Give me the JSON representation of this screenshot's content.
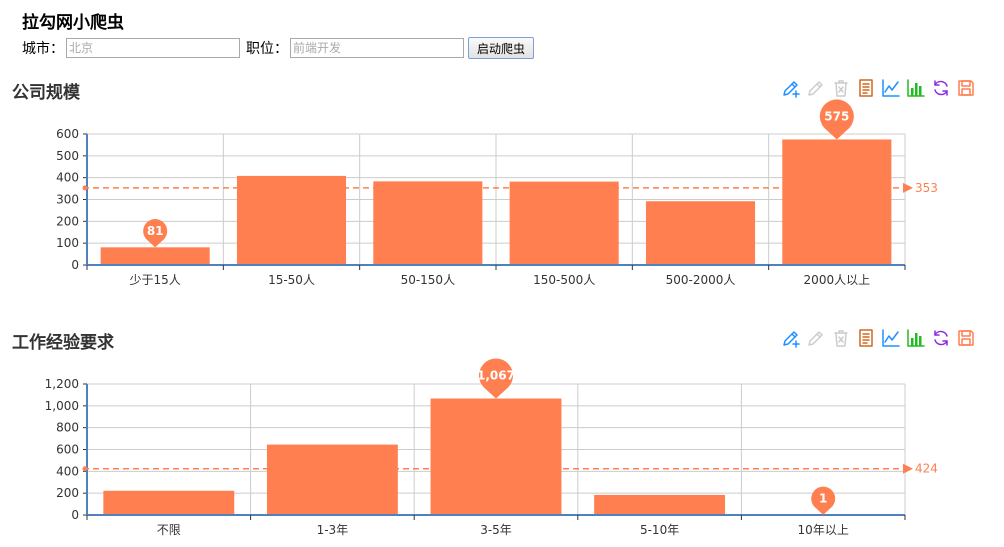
{
  "app": {
    "title": "拉勾网小爬虫"
  },
  "form": {
    "city_label": "城市：",
    "city_placeholder": "北京",
    "position_label": "职位：",
    "position_placeholder": "前端开发",
    "start_button": "启动爬虫"
  },
  "colors": {
    "bar": "#ff7f50",
    "axis": "#4f81bd",
    "grid": "#cccccc"
  },
  "toolbox_icons": [
    {
      "name": "zoom-in-pen-icon",
      "color": "#1e90ff"
    },
    {
      "name": "zoom-reset-pen-icon",
      "color": "#cccccc"
    },
    {
      "name": "clear-icon",
      "color": "#cccccc"
    },
    {
      "name": "data-view-icon",
      "color": "#d2691e"
    },
    {
      "name": "line-chart-icon",
      "color": "#1e90ff"
    },
    {
      "name": "bar-chart-icon",
      "color": "#22bb22"
    },
    {
      "name": "refresh-icon",
      "color": "#8a2be2"
    },
    {
      "name": "save-image-icon",
      "color": "#ff7f50"
    }
  ],
  "chart_data": [
    {
      "type": "bar",
      "title": "公司规模",
      "categories": [
        "少于15人",
        "15-50人",
        "50-150人",
        "150-500人",
        "500-2000人",
        "2000人以上"
      ],
      "values": [
        81,
        408,
        383,
        382,
        292,
        575
      ],
      "ylim": [
        0,
        600
      ],
      "yticks": [
        0,
        100,
        200,
        300,
        400,
        500,
        600
      ],
      "ytick_labels": [
        "0",
        "100",
        "200",
        "300",
        "400",
        "500",
        "600"
      ],
      "mark_point_labels": [
        "81",
        "575"
      ],
      "mark_point_indices": [
        0,
        5
      ],
      "mark_line_value": 353,
      "mark_line_label": "353",
      "grid": true
    },
    {
      "type": "bar",
      "title": "工作经验要求",
      "categories": [
        "不限",
        "1-3年",
        "3-5年",
        "5-10年",
        "10年以上"
      ],
      "values": [
        222,
        645,
        1067,
        184,
        1
      ],
      "ylim": [
        0,
        1200
      ],
      "yticks": [
        0,
        200,
        400,
        600,
        800,
        1000,
        1200
      ],
      "ytick_labels": [
        "0",
        "200",
        "400",
        "600",
        "800",
        "1,000",
        "1,200"
      ],
      "mark_point_labels": [
        "1,067",
        "1"
      ],
      "mark_point_indices": [
        2,
        4
      ],
      "mark_line_value": 424,
      "mark_line_label": "424",
      "grid": true
    }
  ]
}
